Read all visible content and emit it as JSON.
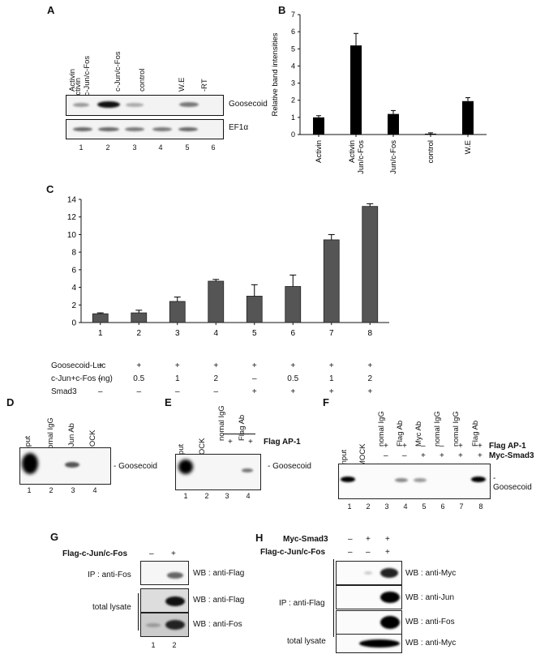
{
  "panels": {
    "A": "A",
    "B": "B",
    "C": "C",
    "D": "D",
    "E": "E",
    "F": "F",
    "G": "G",
    "H": "H"
  },
  "panelA": {
    "lane_headers": [
      "Activin",
      "Activin\n+c-Jun/c-Fos",
      "c-Jun/c-Fos",
      "control",
      "W.E",
      "-RT"
    ],
    "gel1_label": "Goosecoid",
    "gel2_label": "EF1α",
    "lane_numbers": [
      "1",
      "2",
      "3",
      "4",
      "5",
      "6"
    ]
  },
  "chart_data": [
    {
      "id": "B",
      "type": "bar",
      "title": "",
      "ylabel": "Relative band  intensities",
      "categories": [
        "Activin",
        "Activin\n+c-Jun/c-Fos",
        "c-Jun/c-Fos",
        "control",
        "W.E"
      ],
      "values": [
        1.0,
        5.2,
        1.2,
        0.05,
        1.95
      ],
      "errors": [
        0.1,
        0.7,
        0.2,
        0.05,
        0.2
      ],
      "ylim": [
        0,
        7
      ],
      "yticks": [
        "0",
        "1",
        "2",
        "3",
        "4",
        "5",
        "6",
        "7"
      ]
    },
    {
      "id": "C",
      "type": "bar",
      "title": "",
      "ylabel": "",
      "categories": [
        "1",
        "2",
        "3",
        "4",
        "5",
        "6",
        "7",
        "8"
      ],
      "values": [
        1.0,
        1.1,
        2.4,
        4.7,
        3.0,
        4.1,
        9.4,
        13.2
      ],
      "errors": [
        0.1,
        0.3,
        0.5,
        0.2,
        1.3,
        1.3,
        0.6,
        0.3
      ],
      "ylim": [
        0,
        14
      ],
      "yticks": [
        "0",
        "2",
        "4",
        "6",
        "8",
        "10",
        "12",
        "14"
      ],
      "condition_labels": [
        "Goosecoid-Luc",
        "c-Jun+c-Fos (ng)",
        "Smad3"
      ],
      "conditions": [
        [
          "+",
          "+",
          "+",
          "+",
          "+",
          "+",
          "+",
          "+"
        ],
        [
          "–",
          "0.5",
          "1",
          "2",
          "–",
          "0.5",
          "1",
          "2"
        ],
        [
          "–",
          "–",
          "–",
          "–",
          "+",
          "+",
          "+",
          "+"
        ]
      ]
    }
  ],
  "panelD": {
    "headers": [
      "Input",
      "nomal IgG",
      "c-Jun Ab",
      "MOCK"
    ],
    "band_label": "- Goosecoid",
    "numbers": [
      "1",
      "2",
      "3",
      "4"
    ]
  },
  "panelE": {
    "headers": [
      "Input",
      "MOCK",
      "nomal IgG",
      "Flag Ab"
    ],
    "row_label": "Flag AP-1",
    "row_values": [
      "+",
      "+"
    ],
    "band_label": "- Goosecoid",
    "numbers": [
      "1",
      "2",
      "3",
      "4"
    ]
  },
  "panelF": {
    "headers": [
      "Input",
      "MOCK",
      "nomal IgG",
      "Flag Ab",
      "Myc Ab",
      "nomal IgG",
      "nomal IgG",
      "Flag Ab"
    ],
    "row1_label": "Flag AP-1",
    "row1": [
      "+",
      "+",
      "–",
      "–",
      "+",
      "+"
    ],
    "row2_label": "Myc-Smad3",
    "row2": [
      "–",
      "–",
      "+",
      "+",
      "+",
      "+"
    ],
    "band_label": "- Goosecoid",
    "numbers": [
      "1",
      "2",
      "3",
      "4",
      "5",
      "6",
      "7",
      "8"
    ]
  },
  "panelG": {
    "treat_label": "Flag-c-Jun/c-Fos",
    "treat": [
      "–",
      "+"
    ],
    "ip_label": "IP : anti-Fos",
    "lysate_label": "total lysate",
    "wb": [
      "WB : anti-Flag",
      "WB : anti-Flag",
      "WB : anti-Fos"
    ],
    "numbers": [
      "1",
      "2"
    ]
  },
  "panelH": {
    "row1_label": "Myc-Smad3",
    "row1": [
      "–",
      "+",
      "+"
    ],
    "row2_label": "Flag-c-Jun/c-Fos",
    "row2": [
      "–",
      "–",
      "+"
    ],
    "ip_label": "IP : anti-Flag",
    "lysate_label": "total lysate",
    "wb": [
      "WB : anti-Myc",
      "WB : anti-Jun",
      "WB : anti-Fos",
      "WB : anti-Myc"
    ]
  }
}
